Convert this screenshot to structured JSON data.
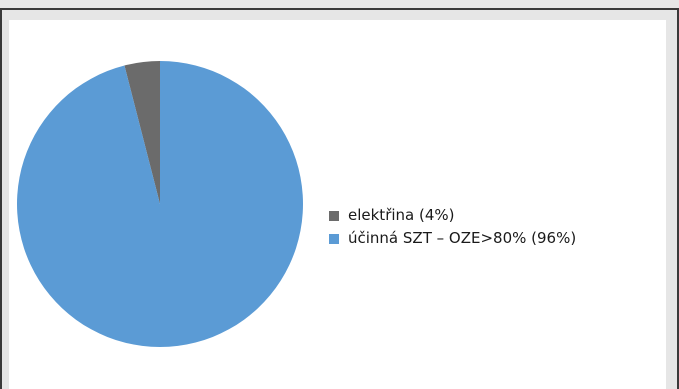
{
  "chart_data": {
    "type": "pie",
    "title": "",
    "legend_position": "right",
    "slices": [
      {
        "label": "elektřina (4%)",
        "value": 4,
        "color": "#6b6b6b"
      },
      {
        "label": "účinná SZT – OZE>80% (96%)",
        "value": 96,
        "color": "#5b9bd5"
      }
    ]
  }
}
